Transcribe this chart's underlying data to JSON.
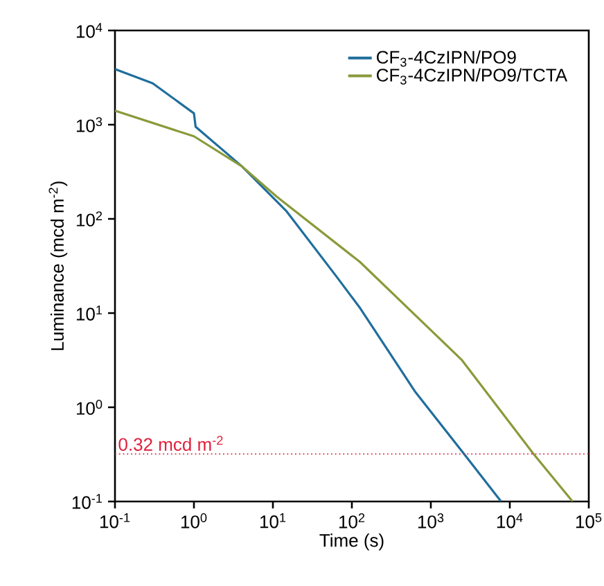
{
  "chart_data": {
    "type": "line",
    "xlabel": "Time (s)",
    "ylabel": "Luminance (mcd m$^{-2}$)",
    "log": "xy",
    "legend": "top right",
    "xlim": [
      0.1,
      100000
    ],
    "ylim": [
      0.1,
      10000
    ],
    "xticks": [
      {
        "value": 0.1,
        "label": "10$^{-1}$"
      },
      {
        "value": 1,
        "label": "10$^{0}$"
      },
      {
        "value": 10,
        "label": "10$^{1}$"
      },
      {
        "value": 100,
        "label": "10$^{2}$"
      },
      {
        "value": 1000,
        "label": "10$^{3}$"
      },
      {
        "value": 10000,
        "label": "10$^{4}$"
      },
      {
        "value": 100000,
        "label": "10$^{5}$"
      }
    ],
    "yticks": [
      {
        "value": 0.1,
        "label": "10$^{-1}$"
      },
      {
        "value": 1,
        "label": "10$^{0}$"
      },
      {
        "value": 10,
        "label": "10$^{1}$"
      },
      {
        "value": 100,
        "label": "10$^{2}$"
      },
      {
        "value": 1000,
        "label": "10$^{3}$"
      },
      {
        "value": 10000,
        "label": "10$^{4}$"
      }
    ],
    "series": [
      {
        "name": "CF$_{3}$-4CzIPN/PO9",
        "color": "#1f6e9c",
        "x": [
          0.1,
          0.3,
          1,
          1.05,
          4.07,
          14.7,
          63,
          128,
          638,
          2630,
          7760
        ],
        "values": [
          3890,
          2750,
          1320,
          950,
          360,
          122,
          24.8,
          11.2,
          1.45,
          0.32,
          0.1
        ]
      },
      {
        "name": "CF$_{3}$-4CzIPN/PO9/TCTA",
        "color": "#8a9a3a",
        "x": [
          0.1,
          1,
          4.07,
          11.2,
          126,
          1000,
          2450,
          19950,
          62400
        ],
        "values": [
          1410,
          753,
          360,
          172,
          35,
          6.6,
          3.2,
          0.32,
          0.1
        ]
      }
    ],
    "ref_lines": [
      {
        "axis": "y",
        "value": 0.32,
        "label": "0.32 mcd m$^{-2}$",
        "color": "#e0203c",
        "line_style": "dotted"
      }
    ]
  }
}
